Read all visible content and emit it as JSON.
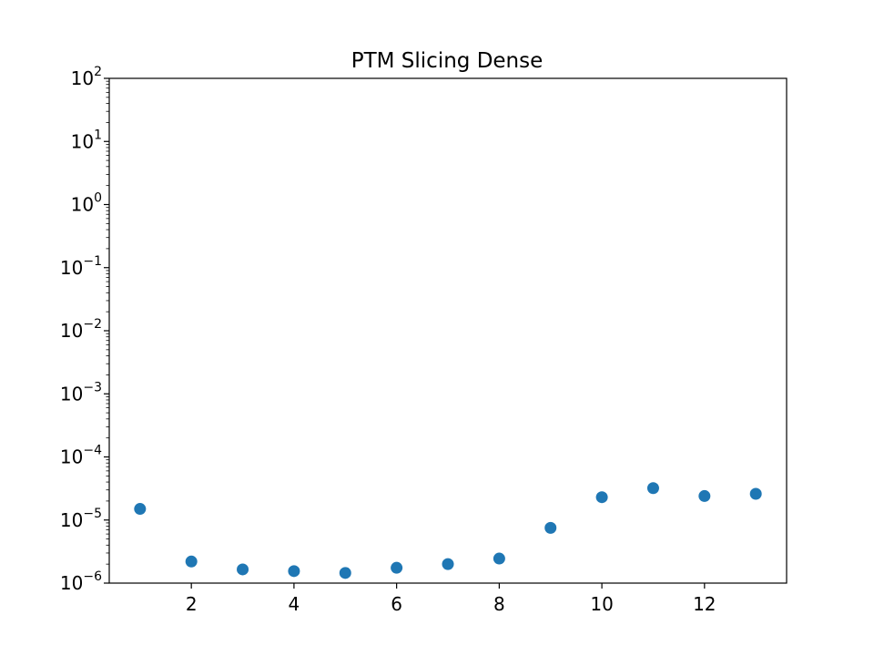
{
  "chart_data": {
    "type": "scatter",
    "title": "PTM Slicing Dense",
    "xlabel": "",
    "ylabel": "",
    "xscale": "linear",
    "yscale": "log",
    "xlim": [
      0.4,
      13.6
    ],
    "ylim": [
      1e-06,
      100
    ],
    "x_ticks": [
      2,
      4,
      6,
      8,
      10,
      12
    ],
    "y_ticks": [
      {
        "base": "10",
        "exp": "−6",
        "value": 1e-06
      },
      {
        "base": "10",
        "exp": "−5",
        "value": 1e-05
      },
      {
        "base": "10",
        "exp": "−4",
        "value": 0.0001
      },
      {
        "base": "10",
        "exp": "−3",
        "value": 0.001
      },
      {
        "base": "10",
        "exp": "−2",
        "value": 0.01
      },
      {
        "base": "10",
        "exp": "−1",
        "value": 0.1
      },
      {
        "base": "10",
        "exp": "0",
        "value": 1
      },
      {
        "base": "10",
        "exp": "1",
        "value": 10
      },
      {
        "base": "10",
        "exp": "2",
        "value": 100
      }
    ],
    "grid": false,
    "marker_color": "#1f77b4",
    "series": [
      {
        "name": "",
        "x": [
          1,
          2,
          3,
          4,
          5,
          6,
          7,
          8,
          9,
          10,
          11,
          12,
          13
        ],
        "y": [
          1.5e-05,
          2.2e-06,
          1.65e-06,
          1.55e-06,
          1.45e-06,
          1.75e-06,
          2e-06,
          2.45e-06,
          7.5e-06,
          2.3e-05,
          3.2e-05,
          2.4e-05,
          2.6e-05
        ]
      }
    ]
  }
}
